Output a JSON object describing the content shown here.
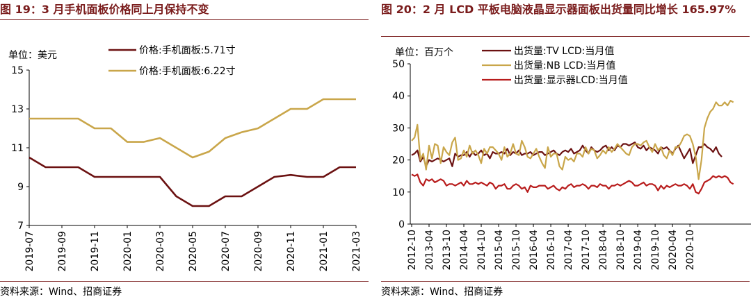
{
  "figures": [
    {
      "title": "图 19：3 月手机面板价格同上月保持不变",
      "source": "资料来源：Wind、招商证券"
    },
    {
      "title": "图 20：2 月 LCD 平板电脑液晶显示器面板出货量同比增长 165.97%",
      "source": "资料来源：Wind、招商证券"
    }
  ],
  "chart_data": [
    {
      "type": "line",
      "title": "图 19：3 月手机面板价格同上月保持不变",
      "unit_label": "单位：美元",
      "ylim": [
        7,
        15
      ],
      "yticks": [
        7,
        9,
        11,
        13,
        15
      ],
      "xticks": [
        "2019-07",
        "2019-09",
        "2019-11",
        "2020-01",
        "2020-03",
        "2020-05",
        "2020-07",
        "2020-09",
        "2020-11",
        "2021-01",
        "2021-03"
      ],
      "categories": [
        "2019-07",
        "2019-08",
        "2019-09",
        "2019-10",
        "2019-11",
        "2019-12",
        "2020-01",
        "2020-02",
        "2020-03",
        "2020-04",
        "2020-05",
        "2020-06",
        "2020-07",
        "2020-08",
        "2020-09",
        "2020-10",
        "2020-11",
        "2020-12",
        "2021-01",
        "2021-02",
        "2021-03"
      ],
      "series": [
        {
          "name": "价格:手机面板:5.71寸",
          "color": "#6b1111",
          "values": [
            10.5,
            10.0,
            10.0,
            10.0,
            9.5,
            9.5,
            9.5,
            9.5,
            9.5,
            8.5,
            8.0,
            8.0,
            8.5,
            8.5,
            9.0,
            9.5,
            9.6,
            9.5,
            9.5,
            10.0,
            10.0
          ]
        },
        {
          "name": "价格:手机面板:6.22寸",
          "color": "#c9a64a",
          "values": [
            12.5,
            12.5,
            12.5,
            12.5,
            12.0,
            12.0,
            11.3,
            11.3,
            11.5,
            11.0,
            10.5,
            10.8,
            11.5,
            11.8,
            12.0,
            12.5,
            13.0,
            13.0,
            13.5,
            13.5,
            13.5
          ]
        }
      ]
    },
    {
      "type": "line",
      "title": "图 20：2 月 LCD 平板电脑液晶显示器面板出货量同比增长 165.97%",
      "unit_label": "单位：百万个",
      "ylim": [
        0,
        50
      ],
      "yticks": [
        0,
        10,
        20,
        30,
        40,
        50
      ],
      "xticks": [
        "2012-10",
        "2013-04",
        "2013-10",
        "2014-04",
        "2014-10",
        "2015-04",
        "2015-10",
        "2016-04",
        "2016-10",
        "2017-04",
        "2017-10",
        "2018-04",
        "2018-10",
        "2019-04",
        "2019-10",
        "2020-04",
        "2020-10"
      ],
      "x_start": "2012-10",
      "series": [
        {
          "name": "出货量:TV LCD:当月值",
          "color": "#6b1111",
          "values": [
            21.5,
            22,
            23,
            19.5,
            21,
            18,
            20,
            19.5,
            20,
            20.5,
            20,
            19.5,
            20,
            20.5,
            18,
            22,
            21,
            21.5,
            21.5,
            22.5,
            21,
            22.5,
            21.5,
            22,
            23,
            21.5,
            22,
            20.5,
            22.5,
            22,
            22,
            22.5,
            22,
            23.5,
            21.5,
            22.5,
            22,
            23,
            21.5,
            22,
            22,
            22.5,
            21.5,
            22,
            22.5,
            22.5,
            21.5,
            22,
            22.5,
            23,
            22,
            21.5,
            22.5,
            23,
            22.5,
            23.5,
            22,
            22.5,
            23,
            24.5,
            23,
            22,
            24,
            23,
            22.5,
            23,
            24,
            24.5,
            23,
            24,
            23,
            24.5,
            24,
            25,
            25,
            24.5,
            25,
            25.5,
            24,
            23.5,
            24.5,
            23,
            24,
            23.5,
            23,
            22,
            24,
            23.5,
            24,
            23,
            22,
            23.5,
            24.5,
            22.5,
            20.5,
            22,
            23.5,
            19,
            21.5,
            24,
            24,
            25,
            24,
            23.5,
            22.5,
            24,
            22,
            21
          ]
        },
        {
          "name": "出货量:NB LCD:当月值",
          "color": "#c9a64a",
          "values": [
            26,
            27,
            31,
            20,
            22,
            17,
            24.5,
            20.5,
            25,
            24.5,
            19,
            24,
            22.5,
            21.5,
            25.5,
            27,
            20,
            20.5,
            23,
            21,
            24.5,
            22,
            23,
            21.5,
            19,
            23.5,
            22,
            24,
            24,
            23,
            22,
            20,
            24,
            21,
            22,
            25,
            22,
            21.5,
            26,
            24,
            21,
            20.5,
            22,
            23.5,
            21,
            19,
            17.5,
            24,
            21,
            22,
            22,
            18,
            17,
            21,
            20,
            20.5,
            19.5,
            22,
            22,
            21,
            24,
            22,
            23.5,
            23,
            20.5,
            21.5,
            23,
            22,
            24,
            22.5,
            23.5,
            25,
            24,
            23,
            22,
            21.5,
            24,
            25,
            25,
            24.5,
            25.5,
            26,
            24,
            22.5,
            25,
            23,
            24,
            21.5,
            20.5,
            23,
            21.5,
            24,
            24,
            25.5,
            27.5,
            28,
            27.5,
            25,
            21,
            14,
            20,
            30,
            33,
            35,
            36,
            38,
            37,
            37,
            38,
            37,
            38.5,
            38
          ]
        },
        {
          "name": "出货量:显示器LCD:当月值",
          "color": "#b81c1c",
          "values": [
            15.5,
            15,
            15.5,
            13,
            12,
            14,
            13.5,
            14,
            13,
            13.5,
            14,
            13.5,
            12,
            12.5,
            12.5,
            12,
            12.5,
            13,
            12,
            13.5,
            12.5,
            12.5,
            13,
            12.5,
            13,
            12.5,
            12,
            13,
            12.5,
            11,
            12,
            12,
            12.5,
            11,
            11,
            12,
            12.5,
            12,
            11,
            11.5,
            10,
            12,
            11.5,
            11.5,
            12,
            12,
            12,
            11,
            11.5,
            12,
            11,
            10.5,
            11.5,
            11,
            12,
            12.5,
            11.5,
            12,
            12,
            12.5,
            12,
            11,
            12,
            12,
            11.5,
            12.5,
            12,
            12,
            11,
            12,
            12,
            12.5,
            12,
            12.5,
            13,
            13.5,
            13,
            12,
            12,
            12.5,
            13,
            12,
            12.5,
            12.5,
            12,
            10.5,
            12,
            11,
            12,
            11.5,
            12,
            12.5,
            12,
            12,
            12.5,
            12,
            11,
            12.5,
            10,
            9.5,
            11,
            13,
            13.5,
            14,
            15,
            14.5,
            15,
            14.5,
            15,
            14.5,
            13,
            12.5
          ]
        }
      ]
    }
  ]
}
